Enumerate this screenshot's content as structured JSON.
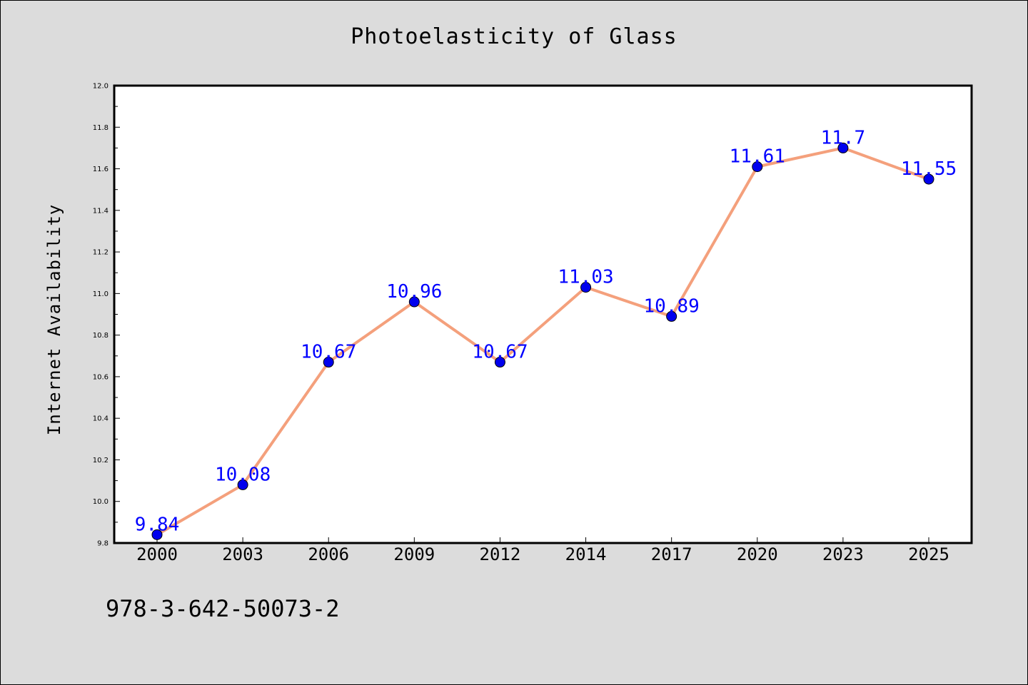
{
  "chart_data": {
    "type": "line",
    "title": "Photoelasticity of Glass",
    "xlabel": "",
    "ylabel": "Internet Availability",
    "categories": [
      "2000",
      "2003",
      "2006",
      "2009",
      "2012",
      "2014",
      "2017",
      "2020",
      "2023",
      "2025"
    ],
    "series": [
      {
        "values": [
          9.84,
          10.08,
          10.67,
          10.96,
          10.67,
          11.03,
          10.89,
          11.61,
          11.7,
          11.55
        ],
        "data_labels": [
          "9.84",
          "10.08",
          "10.67",
          "10.96",
          "10.67",
          "11.03",
          "10.89",
          "11.61",
          "11.7",
          "11.55"
        ],
        "line_color": "#f4a07c",
        "marker_color": "#0000ee",
        "label_color": "#0000ff"
      }
    ],
    "ylim": [
      9.8,
      12.0
    ],
    "yticks": [
      "9.8",
      "10.0",
      "10.2",
      "10.4",
      "10.6",
      "10.8",
      "11.0",
      "11.2",
      "11.4",
      "11.6",
      "11.8",
      "12.0"
    ],
    "grid": false,
    "legend": "none"
  },
  "footer": {
    "isbn": "978-3-642-50073-2"
  },
  "colors": {
    "background": "#dcdcdc",
    "plot_area": "#ffffff"
  }
}
